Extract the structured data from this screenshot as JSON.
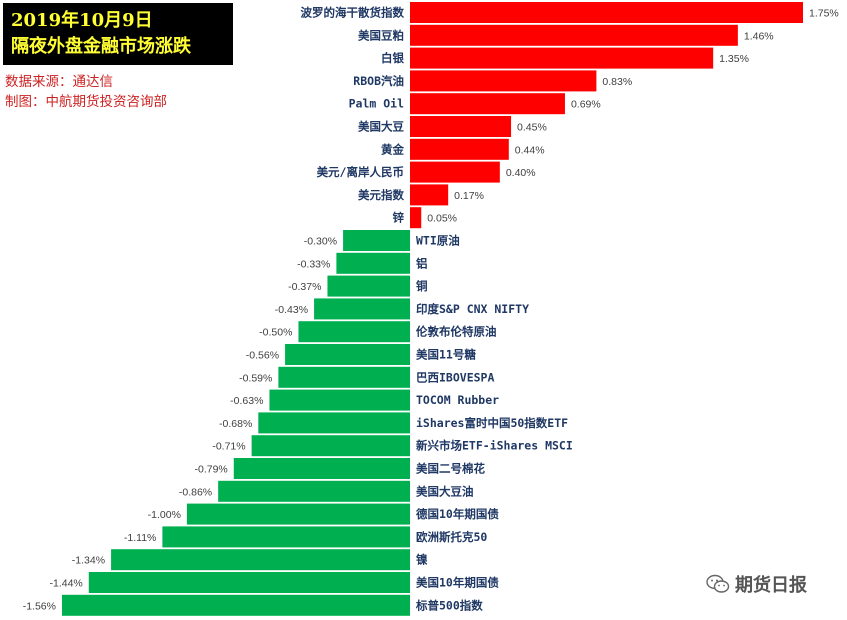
{
  "header": {
    "title_line1": "2019年10月9日",
    "title_line2": "隔夜外盘金融市场涨跌",
    "source": "数据来源：通达信",
    "producer": "制图：中航期货投资咨询部"
  },
  "watermark": {
    "text": "期货日报",
    "icon": "wechat-icon"
  },
  "colors": {
    "up": "#ff0000",
    "down": "#00b050",
    "label": "#1f3864",
    "title": "#ffff33",
    "meta": "#cc2222"
  },
  "chart_data": {
    "type": "bar",
    "orientation": "horizontal",
    "value_format": "percent",
    "categories": [
      "波罗的海干散货指数",
      "美国豆粕",
      "白银",
      "RBOB汽油",
      "Palm Oil",
      "美国大豆",
      "黄金",
      "美元/离岸人民币",
      "美元指数",
      "锌",
      "WTI原油",
      "铝",
      "铜",
      "印度S&P CNX NIFTY",
      "伦敦布伦特原油",
      "美国11号糖",
      "巴西IBOVESPA",
      "TOCOM Rubber",
      "iShares富时中国50指数ETF",
      "新兴市场ETF-iShares MSCI",
      "美国二号棉花",
      "美国大豆油",
      "德国10年期国债",
      "欧洲斯托克50",
      "镍",
      "美国10年期国债",
      "标普500指数"
    ],
    "values": [
      1.75,
      1.46,
      1.35,
      0.83,
      0.69,
      0.45,
      0.44,
      0.4,
      0.17,
      0.05,
      -0.3,
      -0.33,
      -0.37,
      -0.43,
      -0.5,
      -0.56,
      -0.59,
      -0.63,
      -0.68,
      -0.71,
      -0.79,
      -0.86,
      -1.0,
      -1.11,
      -1.34,
      -1.44,
      -1.56
    ],
    "data_labels": [
      "1.75%",
      "1.46%",
      "1.35%",
      "0.83%",
      "0.69%",
      "0.45%",
      "0.44%",
      "0.40%",
      "0.17%",
      "0.05%",
      "-0.30%",
      "-0.33%",
      "-0.37%",
      "-0.43%",
      "-0.50%",
      "-0.56%",
      "-0.59%",
      "-0.63%",
      "-0.68%",
      "-0.71%",
      "-0.79%",
      "-0.86%",
      "-1.00%",
      "-1.11%",
      "-1.34%",
      "-1.44%",
      "-1.56%"
    ],
    "xlim": [
      -1.56,
      1.75
    ],
    "grid": false,
    "legend": "none"
  }
}
